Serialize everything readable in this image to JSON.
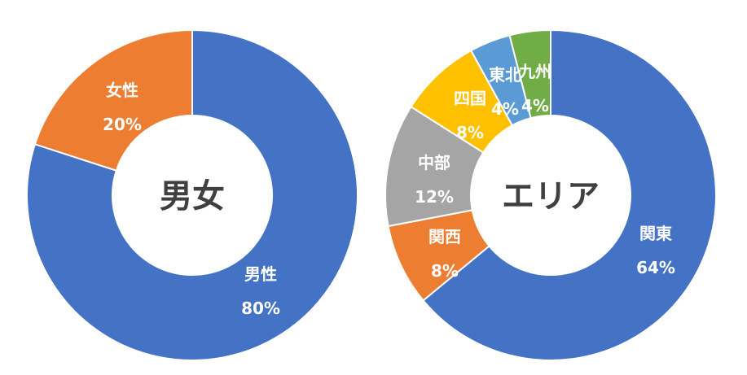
{
  "chart_data": [
    {
      "type": "pie",
      "title": "男女",
      "categories": [
        "男性",
        "女性"
      ],
      "values": [
        80,
        20
      ],
      "value_labels": [
        "80%",
        "20%"
      ],
      "colors": [
        "#4472C4",
        "#ED7D31"
      ],
      "start": "top",
      "direction": "clockwise",
      "hole": "donut"
    },
    {
      "type": "pie",
      "title": "エリア",
      "categories": [
        "関東",
        "関西",
        "中部",
        "四国",
        "東北",
        "九州"
      ],
      "values": [
        64,
        8,
        12,
        8,
        4,
        4
      ],
      "value_labels": [
        "64%",
        "8%",
        "12%",
        "8%",
        "4%",
        "4%"
      ],
      "colors": [
        "#4472C4",
        "#ED7D31",
        "#A5A5A5",
        "#FFC000",
        "#5B9BD5",
        "#70AD47"
      ],
      "start": "top",
      "direction": "clockwise",
      "hole": "donut"
    }
  ]
}
